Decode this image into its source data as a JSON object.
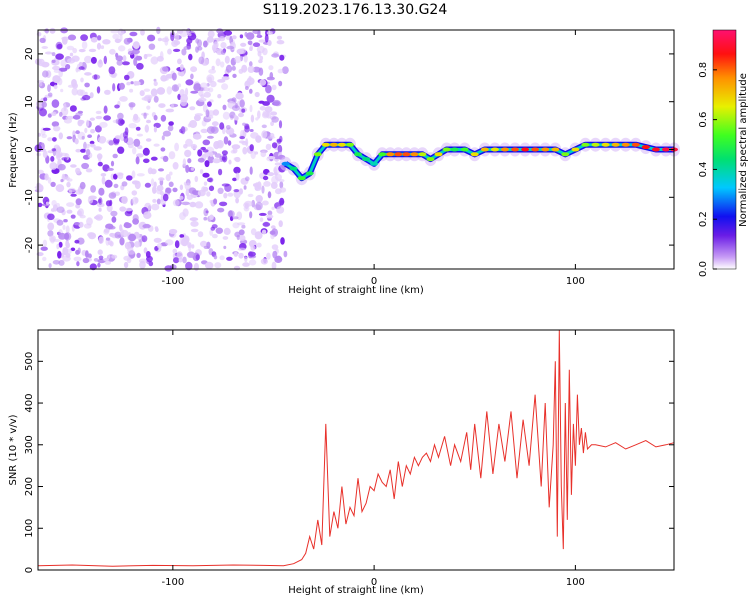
{
  "title": "S119.2023.176.13.30.G24",
  "chart_data": [
    {
      "type": "heatmap",
      "xlabel": "Height of straight line (km)",
      "ylabel": "Frequency (Hz)",
      "xlim": [
        -167,
        149
      ],
      "ylim": [
        -25,
        25
      ],
      "x_ticks": [
        -100,
        0,
        100
      ],
      "y_ticks": [
        -20,
        -10,
        0,
        10,
        20
      ],
      "colorbar": {
        "label": "Normalized spectral amplitude",
        "range": [
          0.0,
          0.96
        ],
        "ticks": [
          0.0,
          0.2,
          0.4,
          0.6,
          0.8
        ]
      },
      "noise_region_x": [
        -167,
        -44
      ],
      "ridge": {
        "x": [
          -44,
          -40,
          -36,
          -32,
          -28,
          -24,
          -20,
          -16,
          -12,
          -8,
          -4,
          0,
          4,
          8,
          12,
          16,
          20,
          24,
          28,
          32,
          36,
          40,
          45,
          50,
          55,
          60,
          65,
          70,
          75,
          80,
          85,
          90,
          95,
          100,
          105,
          110,
          115,
          120,
          125,
          130,
          135,
          140,
          145,
          149
        ],
        "freq": [
          -3,
          -4,
          -6,
          -5,
          -1,
          1,
          1,
          1,
          1,
          -1,
          -2,
          -3,
          -1,
          -1,
          -1,
          -1,
          -1,
          -1,
          -2,
          -1,
          0,
          0,
          0,
          -1,
          0,
          0,
          0,
          0,
          0,
          0,
          0,
          0,
          -1,
          0,
          1,
          1,
          1,
          1,
          1,
          1,
          0.5,
          0,
          0,
          0
        ],
        "amp": [
          0.3,
          0.45,
          0.55,
          0.5,
          0.6,
          0.7,
          0.75,
          0.7,
          0.6,
          0.5,
          0.45,
          0.4,
          0.55,
          0.8,
          0.85,
          0.85,
          0.8,
          0.65,
          0.6,
          0.7,
          0.6,
          0.5,
          0.55,
          0.7,
          0.75,
          0.7,
          0.8,
          0.85,
          0.9,
          0.85,
          0.8,
          0.75,
          0.6,
          0.7,
          0.6,
          0.65,
          0.7,
          0.75,
          0.8,
          0.85,
          0.9,
          0.92,
          0.95,
          0.95
        ]
      }
    },
    {
      "type": "line",
      "xlabel": "Height of straight line (km)",
      "ylabel": "SNR (10 * v/v)",
      "xlim": [
        -167,
        149
      ],
      "ylim": [
        0,
        575
      ],
      "x_ticks": [
        -100,
        0,
        100
      ],
      "y_ticks": [
        0,
        100,
        200,
        300,
        400,
        500
      ],
      "color": "#e8302a",
      "series": [
        {
          "x": [
            -167,
            -150,
            -130,
            -110,
            -90,
            -70,
            -55,
            -45,
            -40,
            -36,
            -34,
            -32,
            -30,
            -28,
            -26,
            -24,
            -22,
            -20,
            -18,
            -16,
            -14,
            -12,
            -10,
            -8,
            -6,
            -4,
            -2,
            0,
            2,
            4,
            6,
            8,
            10,
            12,
            14,
            16,
            18,
            20,
            22,
            24,
            26,
            28,
            30,
            32,
            35,
            38,
            40,
            43,
            46,
            48,
            50,
            53,
            56,
            59,
            62,
            65,
            68,
            71,
            74,
            77,
            80,
            83,
            85,
            87,
            89,
            90,
            91,
            92,
            93,
            94,
            95,
            96,
            97,
            98,
            99,
            100,
            101,
            102,
            103,
            104,
            105,
            106,
            108,
            110,
            115,
            120,
            125,
            130,
            135,
            140,
            145,
            149
          ],
          "y": [
            10,
            12,
            9,
            11,
            10,
            12,
            11,
            10,
            15,
            25,
            40,
            80,
            50,
            120,
            60,
            350,
            80,
            140,
            100,
            200,
            110,
            150,
            130,
            220,
            140,
            160,
            200,
            190,
            230,
            210,
            200,
            240,
            170,
            260,
            200,
            250,
            230,
            270,
            250,
            270,
            280,
            260,
            300,
            270,
            320,
            250,
            300,
            260,
            330,
            240,
            350,
            220,
            380,
            230,
            350,
            260,
            380,
            220,
            360,
            250,
            420,
            200,
            400,
            150,
            300,
            500,
            80,
            575,
            200,
            50,
            400,
            120,
            480,
            180,
            350,
            250,
            420,
            300,
            340,
            280,
            330,
            290,
            300,
            300,
            295,
            305,
            290,
            300,
            310,
            295,
            300,
            305
          ]
        }
      ]
    }
  ]
}
